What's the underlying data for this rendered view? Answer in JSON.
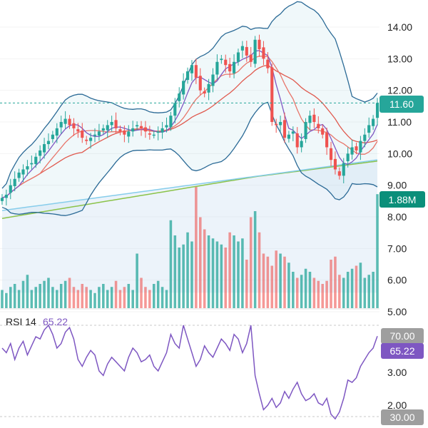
{
  "chart_data": [
    {
      "type": "candlestick",
      "y_ticks": [
        "14.00",
        "13.00",
        "12.00",
        "11.00",
        "10.00",
        "9.00",
        "8.00",
        "7.00",
        "6.00",
        "5.00"
      ],
      "ylim": [
        4.9,
        14.8
      ],
      "last_price": 11.6,
      "last_price_label": "11.60",
      "volume_label": "1.88M",
      "colors": {
        "up": "#26a69a",
        "down": "#ef5350",
        "bb": "#2b6a96",
        "ma_fast": "#7e57c2",
        "ma_mid": "#e8766b",
        "ma_slow": "#e05a4f",
        "ma_long": "#87cdeb",
        "ma_xlong": "#8bc34a",
        "price_line": "#26a69a",
        "price_badge": "#26a69a",
        "volume_badge": "#0b8f7a"
      },
      "close": [
        8.6,
        8.7,
        9.0,
        9.2,
        9.4,
        9.5,
        9.6,
        9.7,
        9.9,
        10.1,
        10.3,
        10.4,
        10.6,
        10.8,
        11.0,
        11.1,
        10.9,
        10.8,
        10.7,
        10.5,
        10.4,
        10.5,
        10.6,
        10.7,
        10.8,
        10.9,
        11.0,
        10.8,
        10.7,
        10.6,
        10.7,
        10.8,
        10.9,
        10.8,
        10.7,
        10.6,
        10.6,
        10.7,
        10.8,
        10.9,
        11.2,
        11.6,
        11.9,
        12.3,
        12.6,
        12.8,
        12.4,
        12.0,
        11.9,
        12.2,
        12.5,
        12.9,
        13.0,
        12.8,
        12.6,
        12.9,
        13.2,
        13.4,
        13.1,
        12.9,
        13.6,
        13.3,
        13.0,
        12.7,
        11.0,
        10.9,
        11.0,
        10.5,
        10.6,
        10.7,
        10.2,
        10.4,
        11.0,
        11.2,
        11.0,
        10.8,
        10.6,
        10.2,
        9.8,
        9.5,
        9.3,
        9.7,
        10.0,
        10.2,
        10.1,
        10.4,
        10.6,
        10.9,
        11.1,
        11.6
      ],
      "volume": [
        0.3,
        0.25,
        0.35,
        0.4,
        0.3,
        0.45,
        0.55,
        0.3,
        0.35,
        0.4,
        0.45,
        0.5,
        0.35,
        0.3,
        0.4,
        0.45,
        0.5,
        0.35,
        0.3,
        0.4,
        0.35,
        0.3,
        0.25,
        0.35,
        0.4,
        0.3,
        0.35,
        0.45,
        0.3,
        0.35,
        0.4,
        0.3,
        0.9,
        0.5,
        0.35,
        0.3,
        0.4,
        0.45,
        0.35,
        0.3,
        1.45,
        1.2,
        1.0,
        1.05,
        1.25,
        1.1,
        2.0,
        1.5,
        1.3,
        1.2,
        1.15,
        1.1,
        1.05,
        1.0,
        1.25,
        1.2,
        1.1,
        1.15,
        0.8,
        1.5,
        1.6,
        1.25,
        0.9,
        0.85,
        0.7,
        0.95,
        0.9,
        0.85,
        0.75,
        0.6,
        0.5,
        0.55,
        0.65,
        0.6,
        0.5,
        0.45,
        0.4,
        0.45,
        0.8,
        0.85,
        0.55,
        0.5,
        0.6,
        0.65,
        0.7,
        0.75,
        0.5,
        0.55,
        0.6,
        1.88
      ]
    },
    {
      "type": "line",
      "title": "RSI 14",
      "value_label": "65.22",
      "y_ticks": [
        "3.00",
        "2.00"
      ],
      "levels": [
        {
          "label": "70.00"
        },
        {
          "label": "30.00"
        }
      ],
      "last_value_label": "65.22",
      "ylim": [
        25,
        75
      ],
      "values": [
        60,
        58,
        62,
        55,
        60,
        63,
        57,
        61,
        65,
        64,
        68,
        70,
        66,
        60,
        62,
        67,
        69,
        64,
        55,
        52,
        56,
        59,
        57,
        50,
        48,
        53,
        56,
        54,
        52,
        50,
        56,
        60,
        58,
        54,
        55,
        57,
        52,
        50,
        54,
        58,
        66,
        62,
        60,
        70,
        64,
        58,
        52,
        55,
        61,
        58,
        56,
        60,
        64,
        62,
        59,
        66,
        64,
        58,
        62,
        70,
        48,
        40,
        33,
        35,
        38,
        34,
        36,
        41,
        38,
        42,
        45,
        40,
        37,
        38,
        40,
        36,
        35,
        38,
        31,
        29,
        32,
        38,
        46,
        45,
        47,
        52,
        55,
        58,
        60,
        65.22
      ],
      "colors": {
        "line": "#7e57c2",
        "badge": "#7e57c2",
        "level_badge": "#9e9e9e"
      }
    }
  ]
}
